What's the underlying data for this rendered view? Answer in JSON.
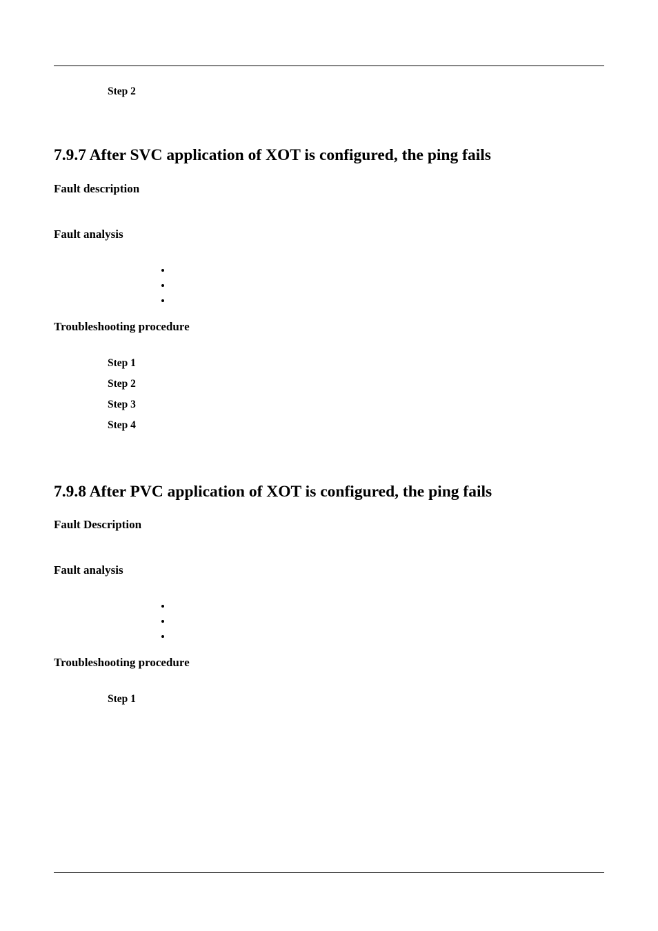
{
  "step_top": "Step 2",
  "section_797": {
    "heading": "7.9.7 After SVC application of XOT is configured, the ping fails",
    "fault_description_label": "Fault description",
    "fault_analysis_label": "Fault analysis",
    "troubleshooting_label": "Troubleshooting procedure",
    "steps": [
      "Step 1",
      "Step 2",
      "Step 3",
      "Step 4"
    ]
  },
  "section_798": {
    "heading": "7.9.8 After PVC application of XOT is configured, the ping fails",
    "fault_description_label": "Fault Description",
    "fault_analysis_label": "Fault analysis",
    "troubleshooting_label": "Troubleshooting procedure",
    "steps": [
      "Step 1"
    ]
  },
  "colors": {
    "text": "#000000",
    "background": "#ffffff",
    "rule": "#000000"
  },
  "typography": {
    "body_font": "Palatino/Book Antiqua serif",
    "section_heading_size_pt": 18,
    "subheading_size_pt": 13,
    "step_label_size_pt": 12
  }
}
